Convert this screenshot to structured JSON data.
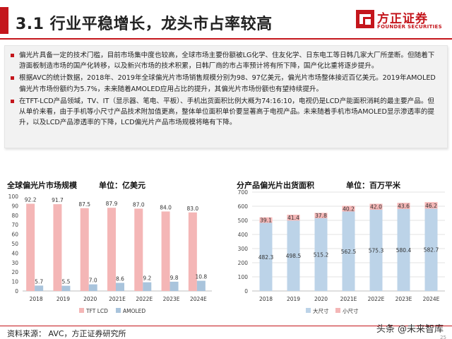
{
  "header": {
    "title": "3.1 行业平稳增长，龙头市占率较高",
    "logo_cn": "方正证券",
    "logo_en": "FOUNDER SECURITIES",
    "accent": "#c4161c"
  },
  "bullets": [
    "偏光片具备一定的技术门槛，目前市场集中度也较高，全球市场主要份额被LG化学、住友化学、日东电工等日韩几家大厂所垄断。但随着下游面板制造市场的国产化转移，以及新兴市场的技术积累，日韩厂商的市占率预计将有所下降，国产化比重将逐步提升。",
    "根据AVC的统计数据，2018年、2019年全球偏光片市场销售规模分别为98、97亿美元，偏光片市场整体接近百亿美元。2019年AMOLED偏光片市场份额约为5.7%，未来随着AMOLED应用占比的提升，其偏光片市场份额也有望持续提升。",
    "在TFT-LCD产品领域，TV、IT（显示器、笔电、平板）、手机出货面积比例大概为74:16:10，电视仍是LCD产能面积消耗的最主要产品。但从单价来看，由于手机等小尺寸产品技术附加值更高，整体单位面积单价要显著高于电视产品。未来随着手机市场AMOLED显示渗透率的提升，以及LCD产品渗透率的下降，LCD偏光片产品市场规模将略有下降。"
  ],
  "chart_left_header": {
    "title": "全球偏光片市场规模",
    "unit": "单位：亿美元"
  },
  "chart_right_header": {
    "title": "分产品偏光片出货面积",
    "unit": "单位：百万平米"
  },
  "chart_data": [
    {
      "type": "bar",
      "title": "全球偏光片市场规模",
      "categories": [
        "2018",
        "2019",
        "2020",
        "2021E",
        "2022E",
        "2023E",
        "2024E"
      ],
      "series": [
        {
          "name": "TFT LCD",
          "values": [
            92.2,
            91.7,
            87.5,
            87.9,
            87.0,
            84.0,
            83.0
          ],
          "color": "#f4b6b6"
        },
        {
          "name": "AMOLED",
          "values": [
            5.7,
            5.5,
            7.0,
            8.6,
            9.2,
            9.8,
            10.8
          ],
          "color": "#a9c4dc"
        }
      ],
      "ylim": [
        0,
        100
      ],
      "yticks": [
        0,
        10,
        20,
        30,
        40,
        50,
        60,
        70,
        80,
        90,
        100
      ],
      "grid": false,
      "legend": "bottom"
    },
    {
      "type": "bar",
      "stacked": true,
      "title": "分产品偏光片出货面积",
      "categories": [
        "2018",
        "2019",
        "2020",
        "2021E",
        "2022E",
        "2023E",
        "2024E"
      ],
      "series": [
        {
          "name": "大尺寸",
          "values": [
            482.3,
            498.5,
            515.2,
            562.5,
            575.3,
            580.4,
            582.7
          ],
          "color": "#bcd3e8"
        },
        {
          "name": "小尺寸",
          "values": [
            39.1,
            41.4,
            37.8,
            40.2,
            42.0,
            43.6,
            46.2
          ],
          "color": "#f4b6b6"
        }
      ],
      "ylim": [
        0,
        700
      ],
      "yticks": [
        0,
        100,
        200,
        300,
        400,
        500,
        600,
        700
      ],
      "grid": true,
      "legend": "bottom"
    }
  ],
  "footer": {
    "source": "资料来源：  AVC，方正证券研究所",
    "watermark": "头条 @未来智库",
    "page": "25"
  }
}
